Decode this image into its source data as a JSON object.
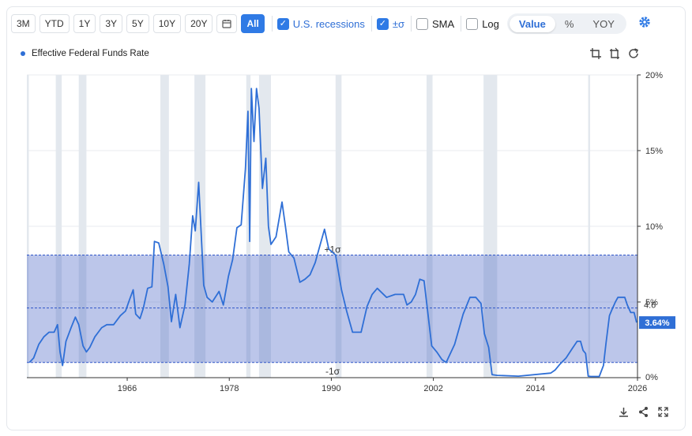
{
  "toolbar": {
    "ranges": [
      "3M",
      "YTD",
      "1Y",
      "3Y",
      "5Y",
      "10Y",
      "20Y",
      "All"
    ],
    "active_range": "All",
    "calendar_icon": "calendar-icon",
    "checks": [
      {
        "label": "U.S. recessions",
        "checked": true
      },
      {
        "label": "±σ",
        "checked": true
      },
      {
        "label": "SMA",
        "checked": false
      },
      {
        "label": "Log",
        "checked": false
      }
    ],
    "modes": [
      "Value",
      "%",
      "YOY"
    ],
    "selected_mode": "Value",
    "settings_icon": "gear-icon"
  },
  "legend": {
    "series_name": "Effective Federal Funds Rate",
    "color": "#2f6fd6"
  },
  "tools": {
    "icons": [
      "crop-icon",
      "crop-alt-icon",
      "refresh-icon"
    ]
  },
  "footer": {
    "icons": [
      "download-icon",
      "share-icon",
      "expand-icon"
    ]
  },
  "chart_data": {
    "type": "line",
    "series": [
      {
        "name": "Effective Federal Funds Rate",
        "color": "#2f6fd6",
        "x": [
          1954.5,
          1955.0,
          1955.6,
          1956.2,
          1956.8,
          1957.4,
          1957.8,
          1958.1,
          1958.4,
          1958.8,
          1959.4,
          1959.9,
          1960.3,
          1960.8,
          1961.2,
          1961.6,
          1962.2,
          1963.0,
          1963.6,
          1964.4,
          1965.2,
          1965.8,
          1966.3,
          1966.7,
          1967.0,
          1967.5,
          1967.9,
          1968.4,
          1968.9,
          1969.2,
          1969.7,
          1970.3,
          1970.8,
          1971.2,
          1971.7,
          1972.2,
          1972.8,
          1973.3,
          1973.7,
          1974.0,
          1974.4,
          1974.7,
          1975.0,
          1975.4,
          1976.0,
          1976.8,
          1977.3,
          1977.9,
          1978.4,
          1978.9,
          1979.4,
          1979.9,
          1980.2,
          1980.4,
          1980.6,
          1980.9,
          1981.2,
          1981.5,
          1981.9,
          1982.3,
          1982.6,
          1982.9,
          1983.5,
          1984.2,
          1984.6,
          1985.0,
          1985.6,
          1986.3,
          1986.9,
          1987.5,
          1988.1,
          1988.7,
          1989.2,
          1989.7,
          1990.5,
          1991.2,
          1991.8,
          1992.5,
          1993.5,
          1994.2,
          1994.8,
          1995.4,
          1996.5,
          1997.5,
          1998.5,
          1998.9,
          1999.4,
          1999.9,
          2000.4,
          2000.9,
          2001.3,
          2001.8,
          2002.4,
          2003.0,
          2003.5,
          2004.5,
          2005.5,
          2006.3,
          2007.0,
          2007.6,
          2008.0,
          2008.5,
          2008.9,
          2009.5,
          2012.0,
          2015.8,
          2016.3,
          2016.9,
          2017.6,
          2018.3,
          2018.9,
          2019.3,
          2019.6,
          2019.9,
          2020.2,
          2020.5,
          2021.5,
          2022.0,
          2022.3,
          2022.7,
          2023.0,
          2023.4,
          2023.7,
          2024.5,
          2024.8,
          2025.2,
          2025.6,
          2025.9
        ],
        "y": [
          1.0,
          1.3,
          2.2,
          2.7,
          3.0,
          3.0,
          3.5,
          1.7,
          0.8,
          2.4,
          3.3,
          4.0,
          3.5,
          2.1,
          1.7,
          2.0,
          2.7,
          3.3,
          3.5,
          3.5,
          4.1,
          4.4,
          5.2,
          5.8,
          4.2,
          3.9,
          4.6,
          5.9,
          6.0,
          9.0,
          8.9,
          7.5,
          6.0,
          3.7,
          5.5,
          3.3,
          4.8,
          7.5,
          10.7,
          9.7,
          12.9,
          9.5,
          6.1,
          5.3,
          5.0,
          5.7,
          4.8,
          6.7,
          7.8,
          9.9,
          10.1,
          13.8,
          17.6,
          9.0,
          19.1,
          15.6,
          19.1,
          17.8,
          12.5,
          14.5,
          10.0,
          8.8,
          9.3,
          11.6,
          10.0,
          8.3,
          7.9,
          6.3,
          6.5,
          6.8,
          7.6,
          8.8,
          9.8,
          8.5,
          8.1,
          5.8,
          4.4,
          3.0,
          3.0,
          4.7,
          5.5,
          5.9,
          5.3,
          5.5,
          5.5,
          4.8,
          5.0,
          5.5,
          6.5,
          6.4,
          4.5,
          2.1,
          1.7,
          1.2,
          1.0,
          2.2,
          4.2,
          5.3,
          5.3,
          4.9,
          2.9,
          2.0,
          0.2,
          0.15,
          0.1,
          0.3,
          0.5,
          0.9,
          1.3,
          1.9,
          2.4,
          2.4,
          1.8,
          1.6,
          0.1,
          0.08,
          0.08,
          0.8,
          2.3,
          4.1,
          4.5,
          5.0,
          5.3,
          5.3,
          4.8,
          4.3,
          4.3,
          3.64
        ]
      }
    ],
    "recessions": [
      [
        1953.6,
        1954.4
      ],
      [
        1957.6,
        1958.3
      ],
      [
        1960.3,
        1961.2
      ],
      [
        1969.9,
        1970.9
      ],
      [
        1973.9,
        1975.2
      ],
      [
        1980.0,
        1980.5
      ],
      [
        1981.5,
        1982.9
      ],
      [
        1990.5,
        1991.2
      ],
      [
        2001.2,
        2001.9
      ],
      [
        2007.9,
        2009.5
      ],
      [
        2020.2,
        2020.3
      ]
    ],
    "current_value_label": "3.64%",
    "sigma": {
      "plus_label": "+1σ",
      "minus_label": "-1σ",
      "mean_label": "4.6",
      "mean": 4.6,
      "plus": 8.1,
      "minus": 1.0
    },
    "x_ticks": [
      1966,
      1978,
      1990,
      2002,
      2014,
      2026
    ],
    "y_ticks": [
      0,
      5,
      10,
      15,
      20
    ],
    "y_tick_labels": [
      "0%",
      "5%",
      "10%",
      "15%",
      "20%"
    ],
    "xlim": [
      1954.2,
      2026.0
    ],
    "ylim": [
      0,
      20
    ],
    "grid": true,
    "y_axis_side": "right"
  }
}
